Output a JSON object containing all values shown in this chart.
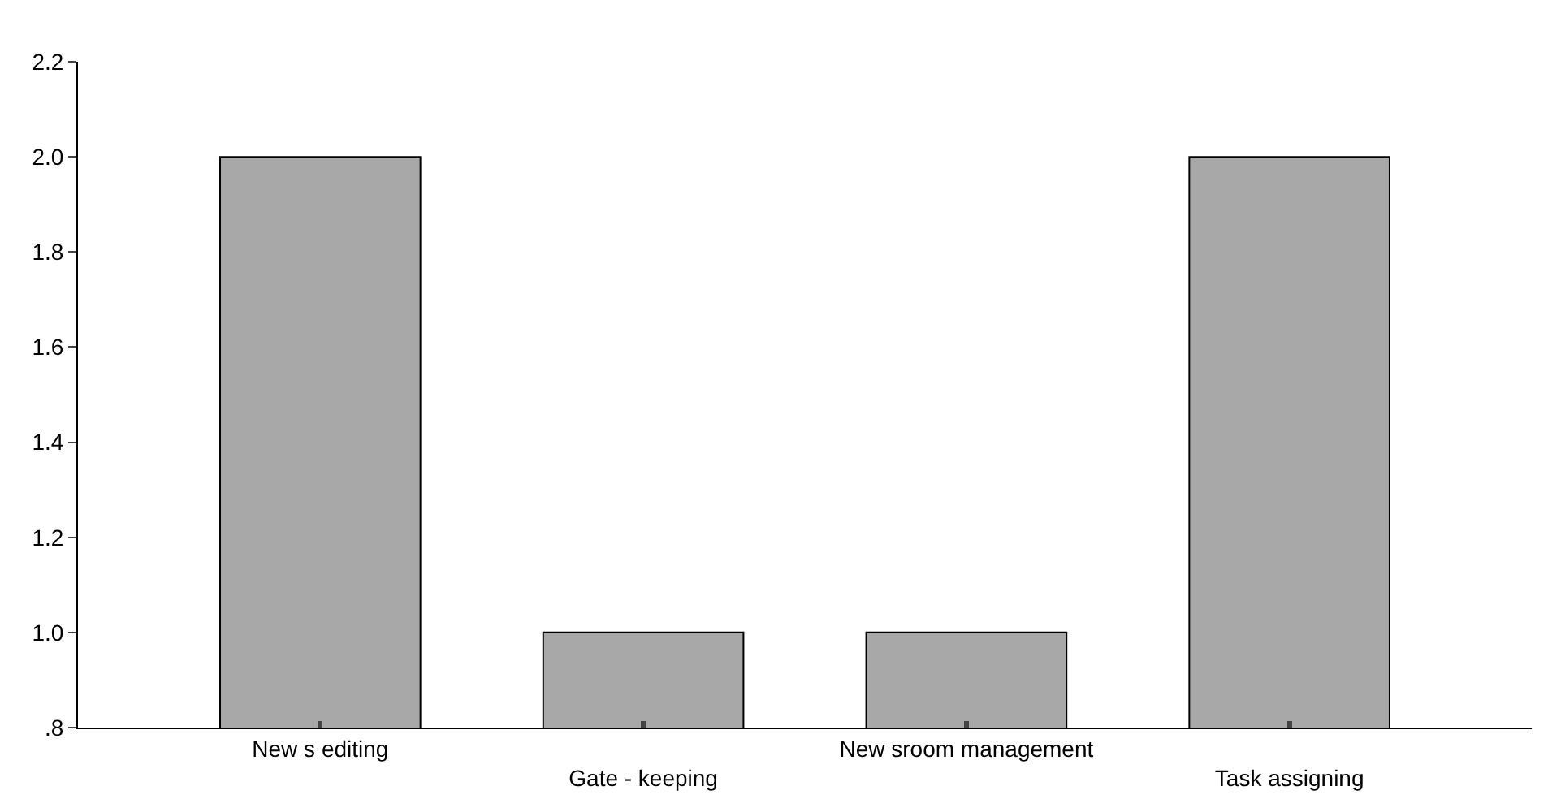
{
  "chart_data": {
    "type": "bar",
    "categories": [
      "New s editing",
      "Gate - keeping",
      "New sroom management",
      "Task assigning"
    ],
    "values": [
      2.0,
      1.0,
      1.0,
      2.0
    ],
    "color": "#a8a8a8",
    "ylim": [
      0.8,
      2.2
    ],
    "yticks": [
      {
        "value": 0.8,
        "label": ".8"
      },
      {
        "value": 1.0,
        "label": "1.0"
      },
      {
        "value": 1.2,
        "label": "1.2"
      },
      {
        "value": 1.4,
        "label": "1.4"
      },
      {
        "value": 1.6,
        "label": "1.6"
      },
      {
        "value": 1.8,
        "label": "1.8"
      },
      {
        "value": 2.0,
        "label": "2.0"
      },
      {
        "value": 2.2,
        "label": "2.2"
      }
    ],
    "legend": false
  }
}
